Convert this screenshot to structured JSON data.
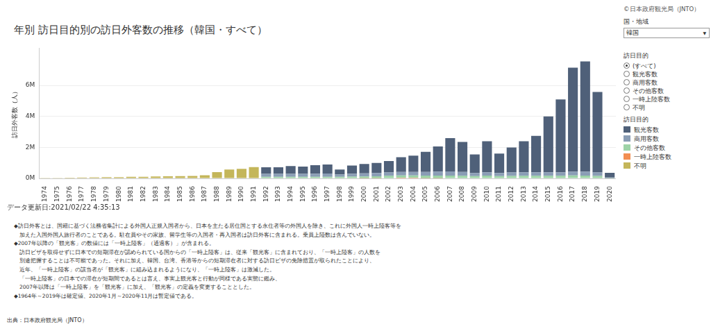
{
  "chart_data": {
    "type": "bar",
    "title": "年別 訪日目的別の訪日外客数の推移（韓国・すべて）",
    "y_label": "訪日外客数（人）",
    "copyright": "©日本政府観光局（JNTO）",
    "country_label": "国・地域",
    "country": "韓国",
    "filter_label": "訪日目的",
    "filter_options": [
      "(すべて)",
      "観光客数",
      "商用客数",
      "その他客数",
      "一時上陸客数",
      "不明"
    ],
    "filter_selected": "(すべて)",
    "legend_title": "訪日目的",
    "updated": "データ更新日:2021/02/22 4:35:13",
    "notes": [
      "◆訪日外客とは、国籍に基づく法務省集計による外国人正規入国者から、日本を主たる居住国とする永住者等の外国人を除き、これに外国人一時上陸客等を",
      "　加えた入国外国人旅行者のことである。駐在員やその家族、留学生等の入国者・再入国者は訪日外客に含まれる。乗員上陸数は含んでいない。",
      "◆2007年以降の「観光客」の数値には「一時上陸客」（通過客）」が含まれる。",
      "　訪日ビザを取得せずに日本での短期滞在が認められている国からの「一時上陸客」は、従来「観光客」に含まれており、「一時上陸客」の人数を",
      "　別途把握することは不可能であった。それに加え、韓国、台湾、香港等からの短期滞在者に対する訪日ビザの免除措置が取られたことにより、",
      "　近年、「一時上陸客」の該当者が「観光客」に組み込まれるようになり、「一時上陸客」は激減した。",
      "　「一時上陸客」の日本での滞在が短期間であるとは言え、事実上観光客と行動が同様である実態に鑑み、",
      "　2007年以降は「一時上陸客」を「観光客」に加え、「観光客」の定義を変更することとした。",
      "◆1964年～2019年は確定値、2020年1月～2020年11月は暫定値である。"
    ],
    "source": "出典：日本政府観光局（JNTO）",
    "categories": [
      "1974",
      "1975",
      "1976",
      "1977",
      "1978",
      "1979",
      "1980",
      "1981",
      "1982",
      "1983",
      "1984",
      "1985",
      "1986",
      "1987",
      "1988",
      "1989",
      "1990",
      "1991",
      "1992",
      "1993",
      "1994",
      "1995",
      "1996",
      "1997",
      "1998",
      "1999",
      "2000",
      "2001",
      "2002",
      "2003",
      "2004",
      "2005",
      "2006",
      "2007",
      "2008",
      "2009",
      "2010",
      "2011",
      "2012",
      "2013",
      "2014",
      "2015",
      "2016",
      "2017",
      "2018",
      "2019",
      "2020"
    ],
    "series": [
      {
        "name": "観光客数",
        "color": "#4f6079",
        "values": [
          null,
          null,
          null,
          null,
          null,
          null,
          null,
          null,
          null,
          null,
          null,
          null,
          null,
          null,
          null,
          null,
          null,
          null,
          420000,
          430000,
          500000,
          460000,
          540000,
          580000,
          320000,
          520000,
          600000,
          650000,
          730000,
          950000,
          1050000,
          1300000,
          1620000,
          2150000,
          1930000,
          1200000,
          2000000,
          1250000,
          1620000,
          2000000,
          2350000,
          3600000,
          4700000,
          6700000,
          7100000,
          5200000,
          300000
        ]
      },
      {
        "name": "商用客数",
        "color": "#8a9db5",
        "values": [
          null,
          null,
          null,
          null,
          null,
          null,
          null,
          null,
          null,
          null,
          null,
          null,
          null,
          null,
          null,
          null,
          null,
          null,
          200000,
          190000,
          190000,
          190000,
          200000,
          210000,
          160000,
          190000,
          200000,
          210000,
          220000,
          220000,
          220000,
          240000,
          260000,
          270000,
          250000,
          200000,
          220000,
          200000,
          220000,
          230000,
          230000,
          230000,
          230000,
          250000,
          260000,
          220000,
          40000
        ]
      },
      {
        "name": "その他客数",
        "color": "#9dd3a7",
        "values": [
          null,
          null,
          null,
          null,
          null,
          null,
          null,
          null,
          null,
          null,
          null,
          null,
          null,
          null,
          null,
          null,
          null,
          null,
          100000,
          100000,
          110000,
          110000,
          110000,
          110000,
          100000,
          120000,
          120000,
          130000,
          140000,
          150000,
          150000,
          160000,
          170000,
          180000,
          170000,
          150000,
          180000,
          150000,
          160000,
          170000,
          170000,
          170000,
          170000,
          190000,
          180000,
          160000,
          20000
        ]
      },
      {
        "name": "一時上陸客数",
        "color": "#f28e52",
        "values": [
          null,
          null,
          null,
          null,
          null,
          null,
          null,
          null,
          null,
          null,
          null,
          null,
          null,
          null,
          null,
          null,
          null,
          null,
          null,
          null,
          null,
          null,
          null,
          null,
          null,
          null,
          10000,
          10000,
          30000,
          50000,
          50000,
          20000,
          10000,
          null,
          null,
          null,
          null,
          null,
          null,
          null,
          null,
          null,
          null,
          null,
          null,
          null,
          null
        ]
      },
      {
        "name": "不明",
        "color": "#c4b65a",
        "values": [
          40000,
          40000,
          50000,
          60000,
          70000,
          80000,
          80000,
          100000,
          110000,
          130000,
          140000,
          150000,
          160000,
          210000,
          410000,
          580000,
          620000,
          730000,
          null,
          null,
          null,
          null,
          null,
          null,
          null,
          null,
          null,
          null,
          null,
          null,
          null,
          null,
          null,
          null,
          null,
          null,
          null,
          null,
          null,
          null,
          null,
          null,
          null,
          null,
          null,
          null,
          null
        ]
      }
    ],
    "stacked": true,
    "ylim": [
      0,
      8400000
    ],
    "yticks": [
      {
        "value": 0,
        "label": "0M"
      },
      {
        "value": 2000000,
        "label": "2M"
      },
      {
        "value": 4000000,
        "label": "4M"
      },
      {
        "value": 6000000,
        "label": "6M"
      }
    ],
    "grid": true,
    "legend": "right"
  }
}
